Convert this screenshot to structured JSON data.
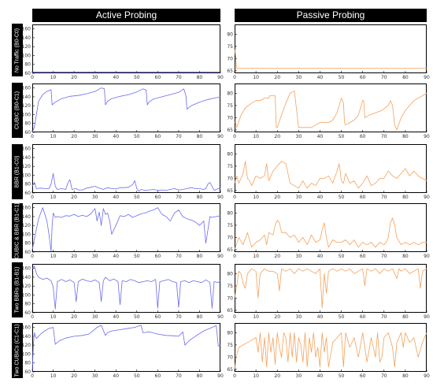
{
  "columns": [
    "Active Probing",
    "Passive Probing"
  ],
  "rows": [
    "No Traffic (B0-C0)",
    "CUBIC (B0-C1)",
    "BBR (B1-C0)",
    "CUBIC & BBR (B1-C1)",
    "Two BBRs (B1-B1)",
    "Two CUBICs (C1-C1)"
  ],
  "colors": {
    "active": "#6b6bef",
    "passive": "#f5a15a"
  },
  "chart_data": [
    {
      "type": "line",
      "row": "No Traffic (B0-C0)",
      "column": "Active Probing",
      "xlim": [
        0,
        90
      ],
      "xticks": [
        0,
        10,
        20,
        30,
        40,
        50,
        60,
        70,
        80,
        90
      ],
      "ylim": [
        60,
        170
      ],
      "yticks": [
        60,
        80,
        100,
        120,
        140,
        160
      ],
      "x": [
        0,
        0.5,
        1,
        90
      ],
      "y": [
        62,
        63,
        63,
        63
      ]
    },
    {
      "type": "line",
      "row": "No Traffic (B0-C0)",
      "column": "Passive Probing",
      "xlim": [
        0,
        90
      ],
      "xticks": [
        0,
        10,
        20,
        30,
        40,
        50,
        60,
        70,
        80,
        90
      ],
      "ylim": [
        64,
        84
      ],
      "yticks": [
        65,
        70,
        75,
        80
      ],
      "x": [
        0,
        0.5,
        1,
        3,
        90
      ],
      "y": [
        74,
        71,
        66,
        66,
        66
      ]
    },
    {
      "type": "line",
      "row": "CUBIC (B0-C1)",
      "column": "Active Probing",
      "xlim": [
        0,
        90
      ],
      "xticks": [
        0,
        10,
        20,
        30,
        40,
        50,
        60,
        70,
        80,
        90
      ],
      "ylim": [
        60,
        170
      ],
      "yticks": [
        60,
        80,
        100,
        120,
        140,
        160
      ],
      "x": [
        0,
        1,
        3,
        5,
        7,
        9,
        9.5,
        11,
        14,
        18,
        22,
        26,
        30,
        33,
        34.5,
        35,
        36,
        38,
        42,
        46,
        50,
        53,
        54.5,
        55,
        56,
        58,
        62,
        66,
        70,
        72.5,
        73.5,
        74,
        76,
        80,
        84,
        88,
        90
      ],
      "y": [
        60,
        72,
        130,
        145,
        152,
        156,
        122,
        128,
        136,
        141,
        143,
        147,
        152,
        160,
        158,
        122,
        130,
        136,
        141,
        145,
        151,
        158,
        155,
        122,
        129,
        135,
        140,
        145,
        150,
        158,
        142,
        112,
        120,
        128,
        134,
        138,
        140
      ]
    },
    {
      "type": "line",
      "row": "CUBIC (B0-C1)",
      "column": "Passive Probing",
      "xlim": [
        0,
        90
      ],
      "xticks": [
        0,
        10,
        20,
        30,
        40,
        50,
        60,
        70,
        80,
        90
      ],
      "ylim": [
        64,
        84
      ],
      "yticks": [
        65,
        70,
        75,
        80
      ],
      "x": [
        0,
        0.5,
        1,
        3,
        5,
        8,
        10,
        12,
        14,
        15,
        16,
        16.5,
        17,
        18,
        19,
        19.5,
        20,
        22,
        24,
        26,
        28,
        30,
        32,
        34,
        36,
        38,
        40,
        42,
        44,
        46,
        48,
        50,
        51,
        51.5,
        52,
        54,
        56,
        58,
        60,
        60.5,
        61,
        63,
        66,
        69,
        72,
        73,
        74,
        75,
        76,
        78,
        80,
        82,
        84,
        86,
        88,
        90
      ],
      "y": [
        68,
        68,
        66,
        71,
        74,
        76,
        77,
        77,
        78,
        78,
        78,
        79,
        79,
        79,
        79,
        66,
        66,
        71,
        76,
        80,
        81,
        66,
        66,
        66,
        66,
        67,
        68,
        68,
        68,
        69,
        72,
        78,
        76,
        68,
        67,
        68,
        69,
        71,
        77,
        77,
        70,
        71,
        72,
        73,
        75,
        77,
        75,
        67,
        65,
        70,
        73,
        75,
        77,
        78,
        79,
        80
      ]
    },
    {
      "type": "line",
      "row": "BBR (B1-C0)",
      "column": "Active Probing",
      "xlim": [
        0,
        90
      ],
      "xticks": [
        0,
        10,
        20,
        30,
        40,
        50,
        60,
        70,
        80,
        90
      ],
      "ylim": [
        60,
        170
      ],
      "yticks": [
        60,
        80,
        100,
        120,
        140,
        160
      ],
      "x": [
        0,
        1,
        2,
        4,
        6,
        8,
        9,
        10,
        11,
        12,
        14,
        16,
        17,
        18,
        19,
        21,
        22,
        24,
        26,
        28,
        30,
        32,
        34,
        36,
        38,
        40,
        42,
        44,
        46,
        48,
        49,
        50,
        51,
        52,
        54,
        56,
        58,
        60,
        62,
        64,
        66,
        68,
        70,
        72,
        74,
        76,
        78,
        80,
        82,
        83,
        84,
        85,
        87,
        89,
        90
      ],
      "y": [
        75,
        84,
        70,
        71,
        70,
        70,
        80,
        104,
        75,
        68,
        70,
        68,
        82,
        90,
        68,
        70,
        67,
        67,
        71,
        73,
        75,
        71,
        68,
        72,
        70,
        69,
        72,
        72,
        73,
        79,
        88,
        70,
        64,
        68,
        66,
        67,
        68,
        66,
        67,
        66,
        68,
        70,
        67,
        68,
        70,
        72,
        70,
        70,
        68,
        70,
        80,
        84,
        66,
        70,
        70
      ]
    },
    {
      "type": "line",
      "row": "BBR (B1-C0)",
      "column": "Passive Probing",
      "xlim": [
        0,
        90
      ],
      "xticks": [
        0,
        10,
        20,
        30,
        40,
        50,
        60,
        70,
        80,
        90
      ],
      "ylim": [
        64,
        84
      ],
      "yticks": [
        65,
        70,
        75,
        80
      ],
      "x": [
        0,
        1,
        2,
        3,
        4,
        5,
        6,
        7,
        8,
        10,
        12,
        14,
        15,
        16,
        18,
        20,
        22,
        24,
        25,
        26,
        28,
        30,
        32,
        34,
        36,
        38,
        40,
        42,
        44,
        46,
        48,
        49,
        50,
        51,
        52,
        54,
        56,
        58,
        60,
        62,
        64,
        66,
        68,
        70,
        72,
        74,
        76,
        78,
        80,
        82,
        84,
        86,
        88,
        90
      ],
      "y": [
        68,
        71,
        68,
        70,
        72,
        77,
        70,
        69,
        67,
        71,
        70,
        71,
        76,
        69,
        73,
        75,
        77,
        76,
        72,
        68,
        67,
        66,
        69,
        66,
        68,
        67,
        70,
        70,
        71,
        68,
        73,
        76,
        69,
        68,
        72,
        68,
        69,
        66,
        68,
        71,
        67,
        68,
        70,
        70,
        73,
        71,
        70,
        72,
        74,
        71,
        73,
        71,
        70,
        69
      ]
    },
    {
      "type": "line",
      "row": "CUBIC & BBR (B1-C1)",
      "column": "Active Probing",
      "xlim": [
        0,
        90
      ],
      "xticks": [
        0,
        10,
        20,
        30,
        40,
        50,
        60,
        70,
        80,
        90
      ],
      "ylim": [
        60,
        170
      ],
      "yticks": [
        60,
        80,
        100,
        120,
        140,
        160
      ],
      "x": [
        0,
        1,
        3,
        5,
        7,
        8,
        9,
        9.5,
        10,
        11,
        12,
        14,
        16,
        18,
        20,
        22,
        24,
        26,
        28,
        29,
        30,
        31,
        32,
        33,
        34,
        35,
        36,
        37,
        38,
        40,
        42,
        44,
        46,
        48,
        50,
        52,
        54,
        56,
        58,
        60,
        62,
        64,
        66,
        68,
        70,
        72,
        74,
        76,
        78,
        80,
        82,
        83,
        84,
        85,
        86,
        88,
        90
      ],
      "y": [
        65,
        90,
        135,
        160,
        130,
        100,
        62,
        118,
        148,
        138,
        140,
        138,
        142,
        141,
        145,
        140,
        143,
        140,
        146,
        152,
        158,
        130,
        150,
        120,
        158,
        145,
        148,
        130,
        100,
        120,
        142,
        140,
        145,
        138,
        142,
        146,
        148,
        152,
        155,
        160,
        145,
        140,
        130,
        148,
        155,
        140,
        135,
        132,
        128,
        120,
        130,
        80,
        110,
        140,
        138,
        140,
        142
      ]
    },
    {
      "type": "line",
      "row": "CUBIC & BBR (B1-C1)",
      "column": "Passive Probing",
      "xlim": [
        0,
        90
      ],
      "xticks": [
        0,
        10,
        20,
        30,
        40,
        50,
        60,
        70,
        80,
        90
      ],
      "ylim": [
        64,
        84
      ],
      "yticks": [
        65,
        70,
        75,
        80
      ],
      "x": [
        0,
        2,
        4,
        6,
        8,
        10,
        12,
        13,
        14,
        15,
        16,
        18,
        19,
        20,
        21,
        22,
        24,
        26,
        28,
        30,
        31,
        32,
        34,
        36,
        38,
        40,
        41,
        42,
        43,
        44,
        46,
        48,
        50,
        52,
        54,
        56,
        58,
        60,
        62,
        64,
        66,
        68,
        70,
        71,
        72,
        73,
        74,
        75,
        76,
        78,
        80,
        82,
        84,
        86,
        88,
        90
      ],
      "y": [
        65,
        70,
        67,
        72,
        66,
        68,
        69,
        70,
        71,
        67,
        72,
        71,
        75,
        77,
        76,
        72,
        72,
        70,
        71,
        68,
        69,
        70,
        67,
        71,
        68,
        69,
        73,
        76,
        70,
        66,
        69,
        68,
        68,
        69,
        67,
        69,
        66,
        68,
        67,
        68,
        66,
        68,
        67,
        68,
        70,
        76,
        78,
        75,
        70,
        67,
        68,
        67,
        68,
        67,
        68,
        68
      ]
    },
    {
      "type": "line",
      "row": "Two BBRs (B1-B1)",
      "column": "Active Probing",
      "xlim": [
        0,
        90
      ],
      "xticks": [
        0,
        10,
        20,
        30,
        40,
        50,
        60,
        70,
        80,
        90
      ],
      "ylim": [
        60,
        170
      ],
      "yticks": [
        60,
        80,
        100,
        120,
        140,
        160
      ],
      "x": [
        0,
        1,
        2,
        3,
        5,
        7,
        9,
        10,
        11,
        12,
        14,
        16,
        18,
        20,
        21,
        22,
        24,
        26,
        28,
        30,
        32,
        33,
        34,
        35,
        37,
        39,
        41,
        42,
        43,
        45,
        47,
        49,
        51,
        53,
        55,
        57,
        59,
        60,
        61,
        63,
        65,
        67,
        69,
        70,
        71,
        73,
        75,
        77,
        79,
        81,
        83,
        85,
        86,
        87,
        89,
        90
      ],
      "y": [
        160,
        165,
        148,
        140,
        135,
        138,
        132,
        118,
        68,
        130,
        135,
        130,
        134,
        128,
        85,
        130,
        136,
        132,
        130,
        134,
        128,
        85,
        132,
        140,
        132,
        136,
        130,
        78,
        132,
        130,
        135,
        132,
        128,
        130,
        132,
        130,
        135,
        70,
        130,
        132,
        135,
        130,
        128,
        72,
        130,
        132,
        128,
        132,
        130,
        128,
        134,
        128,
        70,
        130,
        128,
        132
      ]
    },
    {
      "type": "line",
      "row": "Two BBRs (B1-B1)",
      "column": "Passive Probing",
      "xlim": [
        0,
        90
      ],
      "xticks": [
        0,
        10,
        20,
        30,
        40,
        50,
        60,
        70,
        80,
        90
      ],
      "ylim": [
        64,
        84
      ],
      "yticks": [
        65,
        70,
        75,
        80
      ],
      "x": [
        0,
        1,
        2,
        3,
        4,
        5,
        6,
        7,
        8,
        10,
        11,
        12,
        14,
        16,
        18,
        20,
        21,
        22,
        24,
        26,
        28,
        30,
        32,
        34,
        36,
        38,
        40,
        41,
        42,
        43,
        44,
        46,
        48,
        50,
        52,
        54,
        56,
        58,
        60,
        61,
        62,
        64,
        66,
        68,
        70,
        72,
        74,
        76,
        77,
        78,
        80,
        82,
        84,
        86,
        87,
        88,
        90
      ],
      "y": [
        70,
        75,
        81,
        80,
        76,
        74,
        80,
        81,
        82,
        81,
        70,
        80,
        82,
        81,
        81,
        80,
        73,
        82,
        81,
        82,
        80,
        82,
        81,
        82,
        81,
        80,
        82,
        66,
        80,
        72,
        81,
        82,
        81,
        82,
        81,
        82,
        80,
        81,
        82,
        75,
        82,
        81,
        82,
        80,
        82,
        81,
        82,
        78,
        82,
        81,
        82,
        80,
        81,
        82,
        74,
        81,
        82
      ]
    },
    {
      "type": "line",
      "row": "Two CUBICs (C1-C1)",
      "column": "Active Probing",
      "xlim": [
        0,
        90
      ],
      "xticks": [
        0,
        10,
        20,
        30,
        40,
        50,
        60,
        70,
        80,
        90
      ],
      "ylim": [
        60,
        170
      ],
      "yticks": [
        60,
        80,
        100,
        120,
        140,
        160
      ],
      "x": [
        0,
        0.5,
        1,
        2,
        4,
        6,
        8,
        10,
        11,
        13,
        16,
        20,
        24,
        27,
        29,
        31,
        33,
        35,
        36,
        38,
        42,
        46,
        49,
        52,
        53,
        56,
        60,
        64,
        68,
        70,
        72,
        73,
        75,
        78,
        82,
        86,
        88,
        89,
        90
      ],
      "y": [
        60,
        118,
        148,
        135,
        145,
        152,
        158,
        160,
        122,
        130,
        136,
        140,
        142,
        145,
        152,
        160,
        165,
        142,
        148,
        152,
        155,
        158,
        160,
        165,
        148,
        150,
        145,
        142,
        141,
        140,
        150,
        120,
        130,
        140,
        152,
        160,
        164,
        118,
        120
      ]
    },
    {
      "type": "line",
      "row": "Two CUBICs (C1-C1)",
      "column": "Passive Probing",
      "xlim": [
        0,
        90
      ],
      "xticks": [
        0,
        10,
        20,
        30,
        40,
        50,
        60,
        70,
        80,
        90
      ],
      "ylim": [
        64,
        84
      ],
      "yticks": [
        65,
        70,
        75,
        80
      ],
      "x": [
        0,
        1,
        2,
        4,
        6,
        8,
        10,
        11,
        12,
        13,
        14,
        15,
        16,
        17,
        18,
        19,
        20,
        21,
        22,
        23,
        24,
        25,
        26,
        27,
        28,
        29,
        30,
        31,
        32,
        33,
        34,
        35,
        36,
        37,
        38,
        39,
        40,
        41,
        42,
        43,
        44,
        46,
        48,
        50,
        51,
        52,
        54,
        56,
        58,
        60,
        62,
        64,
        66,
        67,
        68,
        69,
        70,
        72,
        74,
        75,
        76,
        78,
        79,
        80,
        82,
        84,
        86,
        88,
        90
      ],
      "y": [
        65,
        71,
        74,
        75,
        76,
        77,
        78,
        72,
        80,
        68,
        78,
        66,
        80,
        72,
        78,
        67,
        80,
        74,
        70,
        80,
        78,
        68,
        80,
        70,
        80,
        68,
        78,
        75,
        68,
        80,
        66,
        78,
        72,
        80,
        70,
        74,
        66,
        80,
        72,
        78,
        66,
        76,
        78,
        80,
        66,
        80,
        74,
        78,
        70,
        80,
        68,
        78,
        70,
        80,
        68,
        70,
        78,
        80,
        74,
        66,
        76,
        80,
        74,
        80,
        76,
        78,
        70,
        76,
        80
      ]
    }
  ]
}
